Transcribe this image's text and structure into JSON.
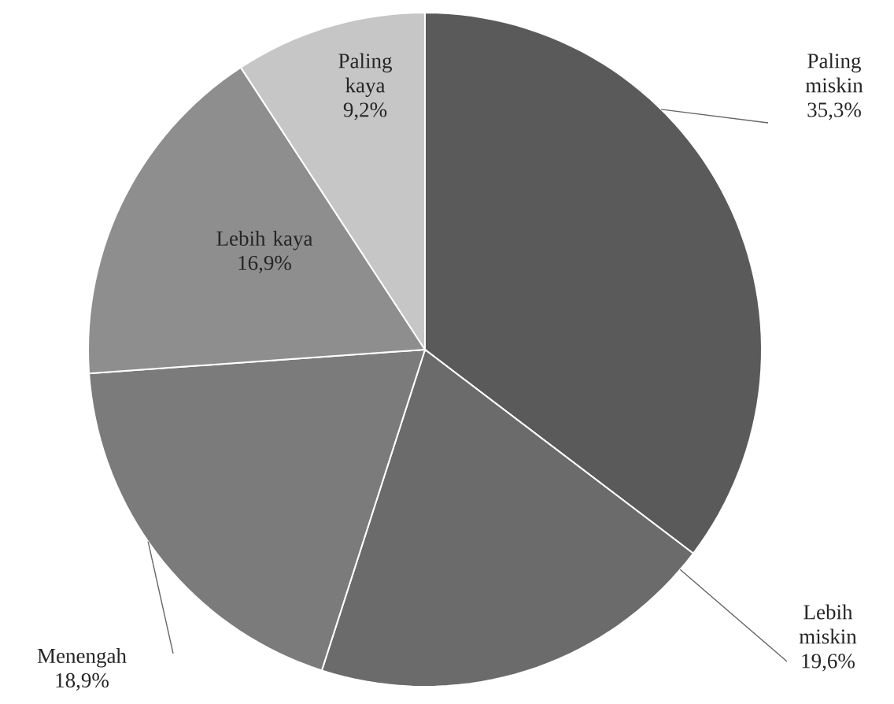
{
  "chart_data": {
    "type": "pie",
    "categories": [
      "Paling miskin",
      "Lebih miskin",
      "Menengah",
      "Lebih kaya",
      "Paling kaya"
    ],
    "values": [
      35.3,
      19.6,
      18.9,
      16.9,
      9.2
    ],
    "value_labels": [
      "35,3%",
      "19,6%",
      "18,9%",
      "16,9%",
      "9,2%"
    ],
    "colors": [
      "#5a5a5a",
      "#6b6b6b",
      "#7b7b7b",
      "#8e8e8e",
      "#c6c6c6"
    ]
  }
}
